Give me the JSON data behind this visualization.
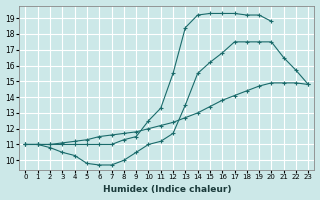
{
  "xlabel": "Humidex (Indice chaleur)",
  "bg_color": "#cce8e8",
  "grid_color": "#b0d4d4",
  "line_color": "#1a6b6b",
  "xlim": [
    -0.5,
    23.5
  ],
  "ylim": [
    9.4,
    19.8
  ],
  "xticks": [
    0,
    1,
    2,
    3,
    4,
    5,
    6,
    7,
    8,
    9,
    10,
    11,
    12,
    13,
    14,
    15,
    16,
    17,
    18,
    19,
    20,
    21,
    22,
    23
  ],
  "yticks": [
    10,
    11,
    12,
    13,
    14,
    15,
    16,
    17,
    18,
    19
  ],
  "line_straight_x": [
    0,
    1,
    2,
    3,
    4,
    5,
    6,
    7,
    8,
    9,
    10,
    11,
    12,
    13,
    14,
    15,
    16,
    17,
    18,
    19,
    20,
    21,
    22,
    23
  ],
  "line_straight_y": [
    11.0,
    11.0,
    11.0,
    11.1,
    11.2,
    11.3,
    11.5,
    11.6,
    11.7,
    11.8,
    12.0,
    12.2,
    12.4,
    12.7,
    13.0,
    13.4,
    13.8,
    14.1,
    14.4,
    14.7,
    14.9,
    14.9,
    14.9,
    14.8
  ],
  "line_dip_x": [
    0,
    1,
    2,
    3,
    4,
    5,
    6,
    7,
    8,
    9,
    10,
    11,
    12,
    13,
    14,
    15,
    16,
    17,
    18,
    19,
    20,
    21,
    22,
    23
  ],
  "line_dip_y": [
    11.0,
    11.0,
    10.8,
    10.5,
    10.3,
    9.8,
    9.7,
    9.7,
    10.0,
    10.5,
    11.0,
    11.2,
    11.7,
    13.5,
    15.5,
    16.2,
    16.8,
    17.5,
    17.5,
    17.5,
    17.5,
    16.5,
    15.7,
    14.8
  ],
  "line_steep_x": [
    0,
    1,
    2,
    3,
    4,
    5,
    6,
    7,
    8,
    9,
    10,
    11,
    12,
    13,
    14,
    15,
    16,
    17,
    18,
    19,
    20,
    21,
    22,
    23
  ],
  "line_steep_y": [
    11.0,
    11.0,
    11.0,
    11.0,
    11.0,
    11.0,
    11.0,
    11.0,
    11.3,
    11.5,
    12.5,
    13.3,
    15.5,
    18.4,
    19.2,
    19.3,
    19.3,
    19.3,
    19.2,
    19.2,
    18.8,
    null,
    null,
    null
  ]
}
